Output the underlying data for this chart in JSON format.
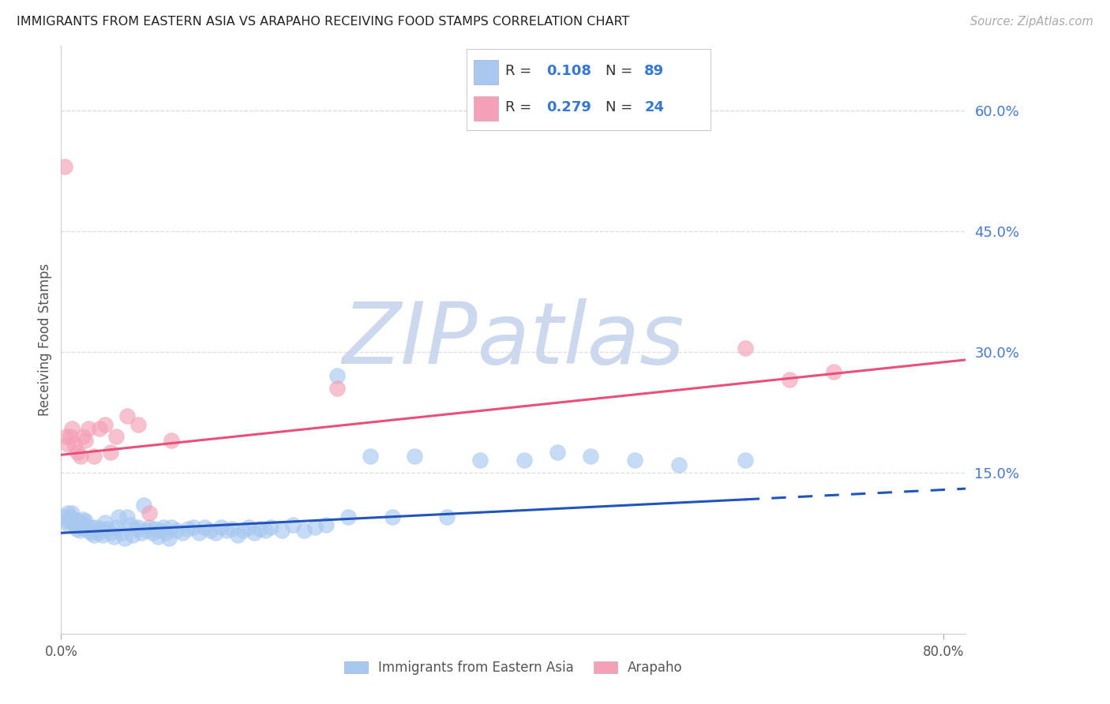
{
  "title": "IMMIGRANTS FROM EASTERN ASIA VS ARAPAHO RECEIVING FOOD STAMPS CORRELATION CHART",
  "source": "Source: ZipAtlas.com",
  "ylabel": "Receiving Food Stamps",
  "legend_label_blue": "Immigrants from Eastern Asia",
  "legend_label_pink": "Arapaho",
  "R_blue": "0.108",
  "N_blue": "89",
  "R_pink": "0.279",
  "N_pink": "24",
  "xlim": [
    0.0,
    0.82
  ],
  "ylim": [
    -0.05,
    0.68
  ],
  "right_yticks": [
    0.6,
    0.45,
    0.3,
    0.15
  ],
  "right_ytick_labels": [
    "60.0%",
    "45.0%",
    "30.0%",
    "15.0%"
  ],
  "blue_scatter_color": "#a8c8f0",
  "pink_scatter_color": "#f4a0b8",
  "blue_line_color": "#2255bb",
  "pink_line_color": "#e8507a",
  "watermark_color": "#ccd8ee",
  "legend_text_dark": "#333333",
  "legend_value_color": "#3377dd",
  "blue_x": [
    0.003,
    0.005,
    0.006,
    0.007,
    0.008,
    0.009,
    0.01,
    0.011,
    0.012,
    0.013,
    0.014,
    0.015,
    0.016,
    0.017,
    0.018,
    0.019,
    0.02,
    0.021,
    0.022,
    0.023,
    0.025,
    0.027,
    0.028,
    0.03,
    0.032,
    0.034,
    0.036,
    0.038,
    0.04,
    0.042,
    0.045,
    0.048,
    0.05,
    0.052,
    0.055,
    0.058,
    0.06,
    0.063,
    0.065,
    0.068,
    0.07,
    0.073,
    0.075,
    0.078,
    0.08,
    0.083,
    0.085,
    0.088,
    0.09,
    0.093,
    0.095,
    0.098,
    0.1,
    0.105,
    0.11,
    0.115,
    0.12,
    0.125,
    0.13,
    0.135,
    0.14,
    0.145,
    0.15,
    0.155,
    0.16,
    0.165,
    0.17,
    0.175,
    0.18,
    0.185,
    0.19,
    0.2,
    0.21,
    0.22,
    0.23,
    0.24,
    0.25,
    0.26,
    0.28,
    0.3,
    0.32,
    0.35,
    0.38,
    0.42,
    0.45,
    0.48,
    0.52,
    0.56,
    0.62
  ],
  "blue_y": [
    0.095,
    0.09,
    0.1,
    0.085,
    0.095,
    0.09,
    0.1,
    0.088,
    0.092,
    0.085,
    0.08,
    0.09,
    0.085,
    0.078,
    0.088,
    0.082,
    0.092,
    0.085,
    0.09,
    0.08,
    0.078,
    0.075,
    0.082,
    0.072,
    0.082,
    0.075,
    0.08,
    0.072,
    0.088,
    0.08,
    0.075,
    0.07,
    0.082,
    0.095,
    0.075,
    0.068,
    0.095,
    0.085,
    0.072,
    0.08,
    0.082,
    0.075,
    0.11,
    0.078,
    0.082,
    0.075,
    0.08,
    0.07,
    0.078,
    0.082,
    0.075,
    0.068,
    0.082,
    0.078,
    0.075,
    0.08,
    0.082,
    0.075,
    0.082,
    0.078,
    0.075,
    0.082,
    0.078,
    0.08,
    0.072,
    0.078,
    0.082,
    0.075,
    0.08,
    0.078,
    0.082,
    0.078,
    0.085,
    0.078,
    0.082,
    0.085,
    0.27,
    0.095,
    0.17,
    0.095,
    0.17,
    0.095,
    0.165,
    0.165,
    0.175,
    0.17,
    0.165,
    0.16,
    0.165
  ],
  "pink_x": [
    0.003,
    0.005,
    0.006,
    0.008,
    0.01,
    0.012,
    0.015,
    0.018,
    0.02,
    0.022,
    0.025,
    0.03,
    0.035,
    0.04,
    0.045,
    0.05,
    0.06,
    0.07,
    0.08,
    0.1,
    0.25,
    0.62,
    0.66,
    0.7
  ],
  "pink_y": [
    0.53,
    0.195,
    0.185,
    0.195,
    0.205,
    0.185,
    0.175,
    0.17,
    0.195,
    0.19,
    0.205,
    0.17,
    0.205,
    0.21,
    0.175,
    0.195,
    0.22,
    0.21,
    0.1,
    0.19,
    0.255,
    0.305,
    0.265,
    0.275
  ],
  "blue_trend_x0": 0.0,
  "blue_trend_x1": 0.82,
  "blue_trend_y0": 0.075,
  "blue_trend_y1": 0.13,
  "blue_trend_solid_x1": 0.62,
  "pink_trend_x0": 0.0,
  "pink_trend_x1": 0.82,
  "pink_trend_y0": 0.172,
  "pink_trend_y1": 0.29,
  "grid_color": "#dddddd",
  "spine_color": "#cccccc"
}
